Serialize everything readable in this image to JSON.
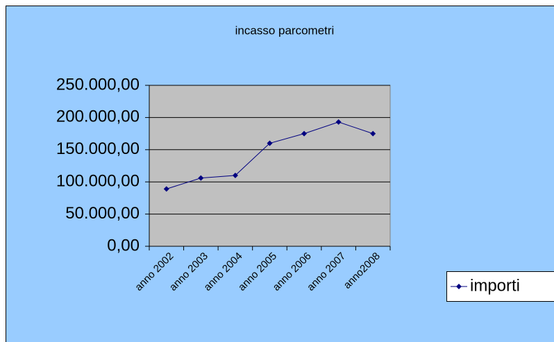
{
  "chart_data": {
    "type": "line",
    "title": "incasso parcometri",
    "categories": [
      "anno 2002",
      "anno 2003",
      "anno 2004",
      "anno 2005",
      "anno 2006",
      "anno 2007",
      "anno2008"
    ],
    "series": [
      {
        "name": "importi",
        "color": "#000080",
        "values": [
          89000,
          106000,
          110000,
          160000,
          175000,
          193000,
          175000
        ]
      }
    ],
    "ylim": [
      0,
      250000
    ],
    "yticks": [
      {
        "value": 0,
        "label": "0,00"
      },
      {
        "value": 50000,
        "label": "50.000,00"
      },
      {
        "value": 100000,
        "label": "100.000,00"
      },
      {
        "value": 150000,
        "label": "150.000,00"
      },
      {
        "value": 200000,
        "label": "200.000,00"
      },
      {
        "value": 250000,
        "label": "250.000,00"
      }
    ],
    "grid": true,
    "legend": "right",
    "background": "#99ccff",
    "plot_background": "#c0c0c0"
  }
}
